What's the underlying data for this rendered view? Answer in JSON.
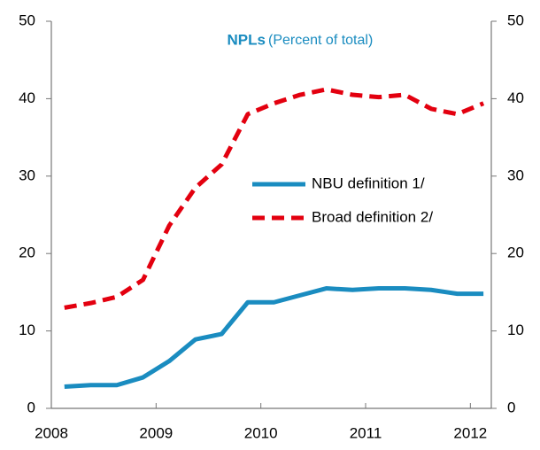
{
  "chart_data": {
    "type": "line",
    "title": "NPLs",
    "subtitle": "(Percent of total)",
    "x": [
      2008.125,
      2008.375,
      2008.625,
      2008.875,
      2009.125,
      2009.375,
      2009.625,
      2009.875,
      2010.125,
      2010.375,
      2010.625,
      2010.875,
      2011.125,
      2011.375,
      2011.625,
      2011.875,
      2012.125
    ],
    "series": [
      {
        "name": "NBU definition 1/",
        "color": "#1a8cc0",
        "dash": false,
        "values": [
          2.8,
          3.0,
          3.0,
          4.0,
          6.1,
          8.9,
          9.6,
          13.7,
          13.7,
          14.6,
          15.5,
          15.3,
          15.5,
          15.5,
          15.3,
          14.8,
          14.8
        ]
      },
      {
        "name": "Broad definition 2/",
        "color": "#e3000f",
        "dash": true,
        "values": [
          13.0,
          13.6,
          14.4,
          16.6,
          23.6,
          28.5,
          31.5,
          38.0,
          39.4,
          40.5,
          41.2,
          40.5,
          40.2,
          40.5,
          38.7,
          38.0,
          39.4
        ]
      }
    ],
    "xlim": [
      2008,
      2012.2
    ],
    "xticks": [
      2008,
      2009,
      2010,
      2011,
      2012
    ],
    "ylim": [
      0,
      50
    ],
    "yticks": [
      0,
      10,
      20,
      30,
      40,
      50
    ],
    "y2lim": [
      0,
      50
    ],
    "y2ticks": [
      0,
      10,
      20,
      30,
      40,
      50
    ],
    "grid": false
  }
}
